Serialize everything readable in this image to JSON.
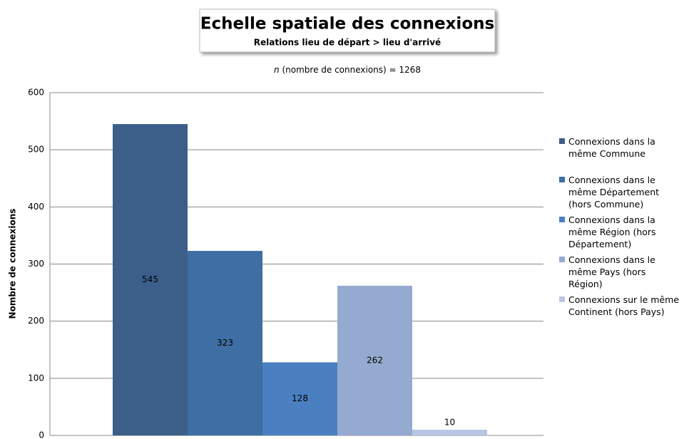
{
  "chart_data": {
    "type": "bar",
    "title": "Echelle spatiale des connexions",
    "subtitle": "Relations lieu de départ > lieu d'arrivé",
    "note": [
      "n",
      "(nombre de connexions) = 1268"
    ],
    "ylabel": "Nombre de connexions",
    "categories": [
      null
    ],
    "series": [
      {
        "name": "Connexions dans la même Commune",
        "color": "#3c5f8a",
        "values": [
          545
        ]
      },
      {
        "name": "Connexions dans le même Département (hors Commune)",
        "color": "#3e6ea3",
        "values": [
          323
        ]
      },
      {
        "name": "Connexions dans la même Région (hors Département)",
        "color": "#4a7fc0",
        "values": [
          128
        ]
      },
      {
        "name": "Connexions dans le même Pays (hors Région)",
        "color": "#95aad0",
        "values": [
          262
        ]
      },
      {
        "name": "Connexions sur le même Continent (hors Pays)",
        "color": "#b9c6e3",
        "values": [
          10
        ]
      }
    ],
    "ylim": [
      0,
      600
    ],
    "yticks": [
      0,
      100,
      200,
      300,
      400,
      500,
      600
    ],
    "grid": true,
    "legend": "right"
  }
}
